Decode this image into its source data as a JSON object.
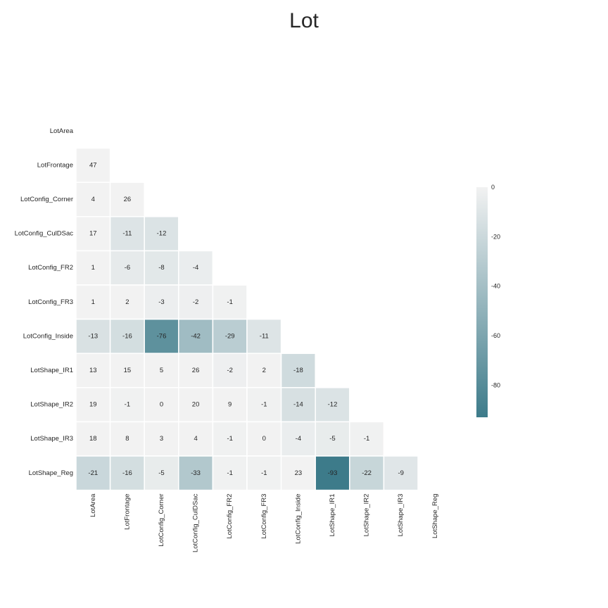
{
  "chart_data": {
    "type": "heatmap",
    "title": "Lot",
    "variables": [
      "LotArea",
      "LotFrontage",
      "LotConfig_Corner",
      "LotConfig_CulDSac",
      "LotConfig_FR2",
      "LotConfig_FR3",
      "LotConfig_Inside",
      "LotShape_IR1",
      "LotShape_IR2",
      "LotShape_IR3",
      "LotShape_Reg"
    ],
    "mask": "upper-triangle-and-diagonal",
    "matrix": [
      [
        null,
        null,
        null,
        null,
        null,
        null,
        null,
        null,
        null,
        null,
        null
      ],
      [
        47,
        null,
        null,
        null,
        null,
        null,
        null,
        null,
        null,
        null,
        null
      ],
      [
        4,
        26,
        null,
        null,
        null,
        null,
        null,
        null,
        null,
        null,
        null
      ],
      [
        17,
        -11,
        -12,
        null,
        null,
        null,
        null,
        null,
        null,
        null,
        null
      ],
      [
        1,
        -6,
        -8,
        -4,
        null,
        null,
        null,
        null,
        null,
        null,
        null
      ],
      [
        1,
        2,
        -3,
        -2,
        -1,
        null,
        null,
        null,
        null,
        null,
        null
      ],
      [
        -13,
        -16,
        -76,
        -42,
        -29,
        -11,
        null,
        null,
        null,
        null,
        null
      ],
      [
        13,
        15,
        5,
        26,
        -2,
        2,
        -18,
        null,
        null,
        null,
        null
      ],
      [
        19,
        -1,
        0,
        20,
        9,
        -1,
        -14,
        -12,
        null,
        null,
        null
      ],
      [
        18,
        8,
        3,
        4,
        -1,
        0,
        -4,
        -5,
        -1,
        null,
        null
      ],
      [
        -21,
        -16,
        -5,
        -33,
        -1,
        -1,
        23,
        -93,
        -22,
        -9,
        null
      ]
    ],
    "colorbar": {
      "ticks": [
        0,
        -20,
        -40,
        -60,
        -80
      ],
      "range": [
        -93,
        0
      ],
      "low_color": "#3d7b8a",
      "high_color": "#f2f2f2"
    }
  }
}
